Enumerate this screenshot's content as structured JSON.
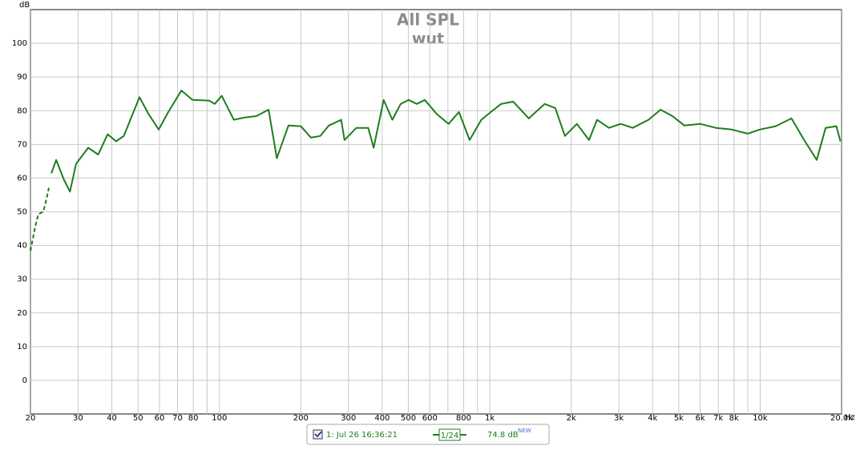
{
  "chart_data": {
    "type": "line",
    "title": "All SPL",
    "subtitle": "wut",
    "y_label": "dB",
    "x_label": "Hz",
    "log_x": true,
    "grid": true,
    "xlim": [
      20,
      20000
    ],
    "ylim": [
      -10,
      110
    ],
    "xticks": [
      20,
      30,
      40,
      50,
      60,
      70,
      80,
      100,
      200,
      300,
      400,
      500,
      600,
      800,
      {
        "value": 1000,
        "label": "1k"
      },
      {
        "value": 2000,
        "label": "2k"
      },
      {
        "value": 3000,
        "label": "3k"
      },
      {
        "value": 4000,
        "label": "4k"
      },
      {
        "value": 5000,
        "label": "5k"
      },
      {
        "value": 6000,
        "label": "6k"
      },
      {
        "value": 7000,
        "label": "7k"
      },
      {
        "value": 8000,
        "label": "8k"
      },
      {
        "value": 10000,
        "label": "10k"
      },
      {
        "value": 20000,
        "label": "20.0k"
      }
    ],
    "xminor": [
      90,
      700,
      900,
      9000
    ],
    "yticks": [
      0,
      10,
      20,
      30,
      40,
      50,
      60,
      70,
      80,
      90,
      100
    ],
    "series": [
      {
        "name": "1: Jul 26 16:36:21",
        "color": "#1e7d1e",
        "style": "solid",
        "x": [
          23.9,
          24.9,
          26.6,
          28,
          29.5,
          32.7,
          35.6,
          38.6,
          41.5,
          44.3,
          50.6,
          54.7,
          59.6,
          64.7,
          72.3,
          79.5,
          91.5,
          96,
          102,
          113,
          124,
          137,
          152,
          163,
          171,
          180,
          200,
          218,
          236,
          254,
          282,
          290,
          321,
          355,
          372,
          405,
          436,
          468,
          501,
          537,
          575,
          637,
          704,
          769,
          842,
          930,
          1009,
          1102,
          1220,
          1394,
          1596,
          1746,
          1895,
          2100,
          2328,
          2493,
          2757,
          3051,
          3377,
          3863,
          4281,
          4737,
          5243,
          5998,
          6865,
          7858,
          8993,
          9961,
          11408,
          13055,
          14536,
          16184,
          17457,
          19130,
          19804
        ],
        "values": [
          61.4,
          65.4,
          59.5,
          56,
          64.2,
          69,
          67,
          73,
          70.9,
          72.5,
          84,
          79,
          74.4,
          79.6,
          86,
          83.2,
          83,
          82,
          84.4,
          77.3,
          78,
          78.4,
          80.3,
          65.9,
          70.6,
          75.6,
          75.4,
          72,
          72.5,
          75.6,
          77.3,
          71.3,
          74.9,
          74.9,
          69,
          83.2,
          77.3,
          82,
          83.2,
          82,
          83.2,
          79,
          76.1,
          79.6,
          71.3,
          77.3,
          79.6,
          82,
          82.7,
          77.7,
          82,
          80.8,
          72.5,
          76.1,
          71.3,
          77.3,
          74.9,
          76.1,
          74.9,
          77.3,
          80.3,
          78.4,
          75.6,
          76.1,
          74.9,
          74.4,
          73.2,
          74.4,
          75.4,
          77.7,
          71.3,
          65.4,
          74.9,
          75.4,
          70.9
        ]
      },
      {
        "color": "#1e7d1e",
        "style": "dashed",
        "x": [
          20,
          20.8,
          21.4,
          22.3,
          22.7,
          23.4
        ],
        "values": [
          38.4,
          45.3,
          49.3,
          50,
          52.4,
          57.1
        ]
      }
    ],
    "legend": {
      "smoothing": "1/24",
      "level": "74.8 dB",
      "badge": "NEW"
    }
  }
}
